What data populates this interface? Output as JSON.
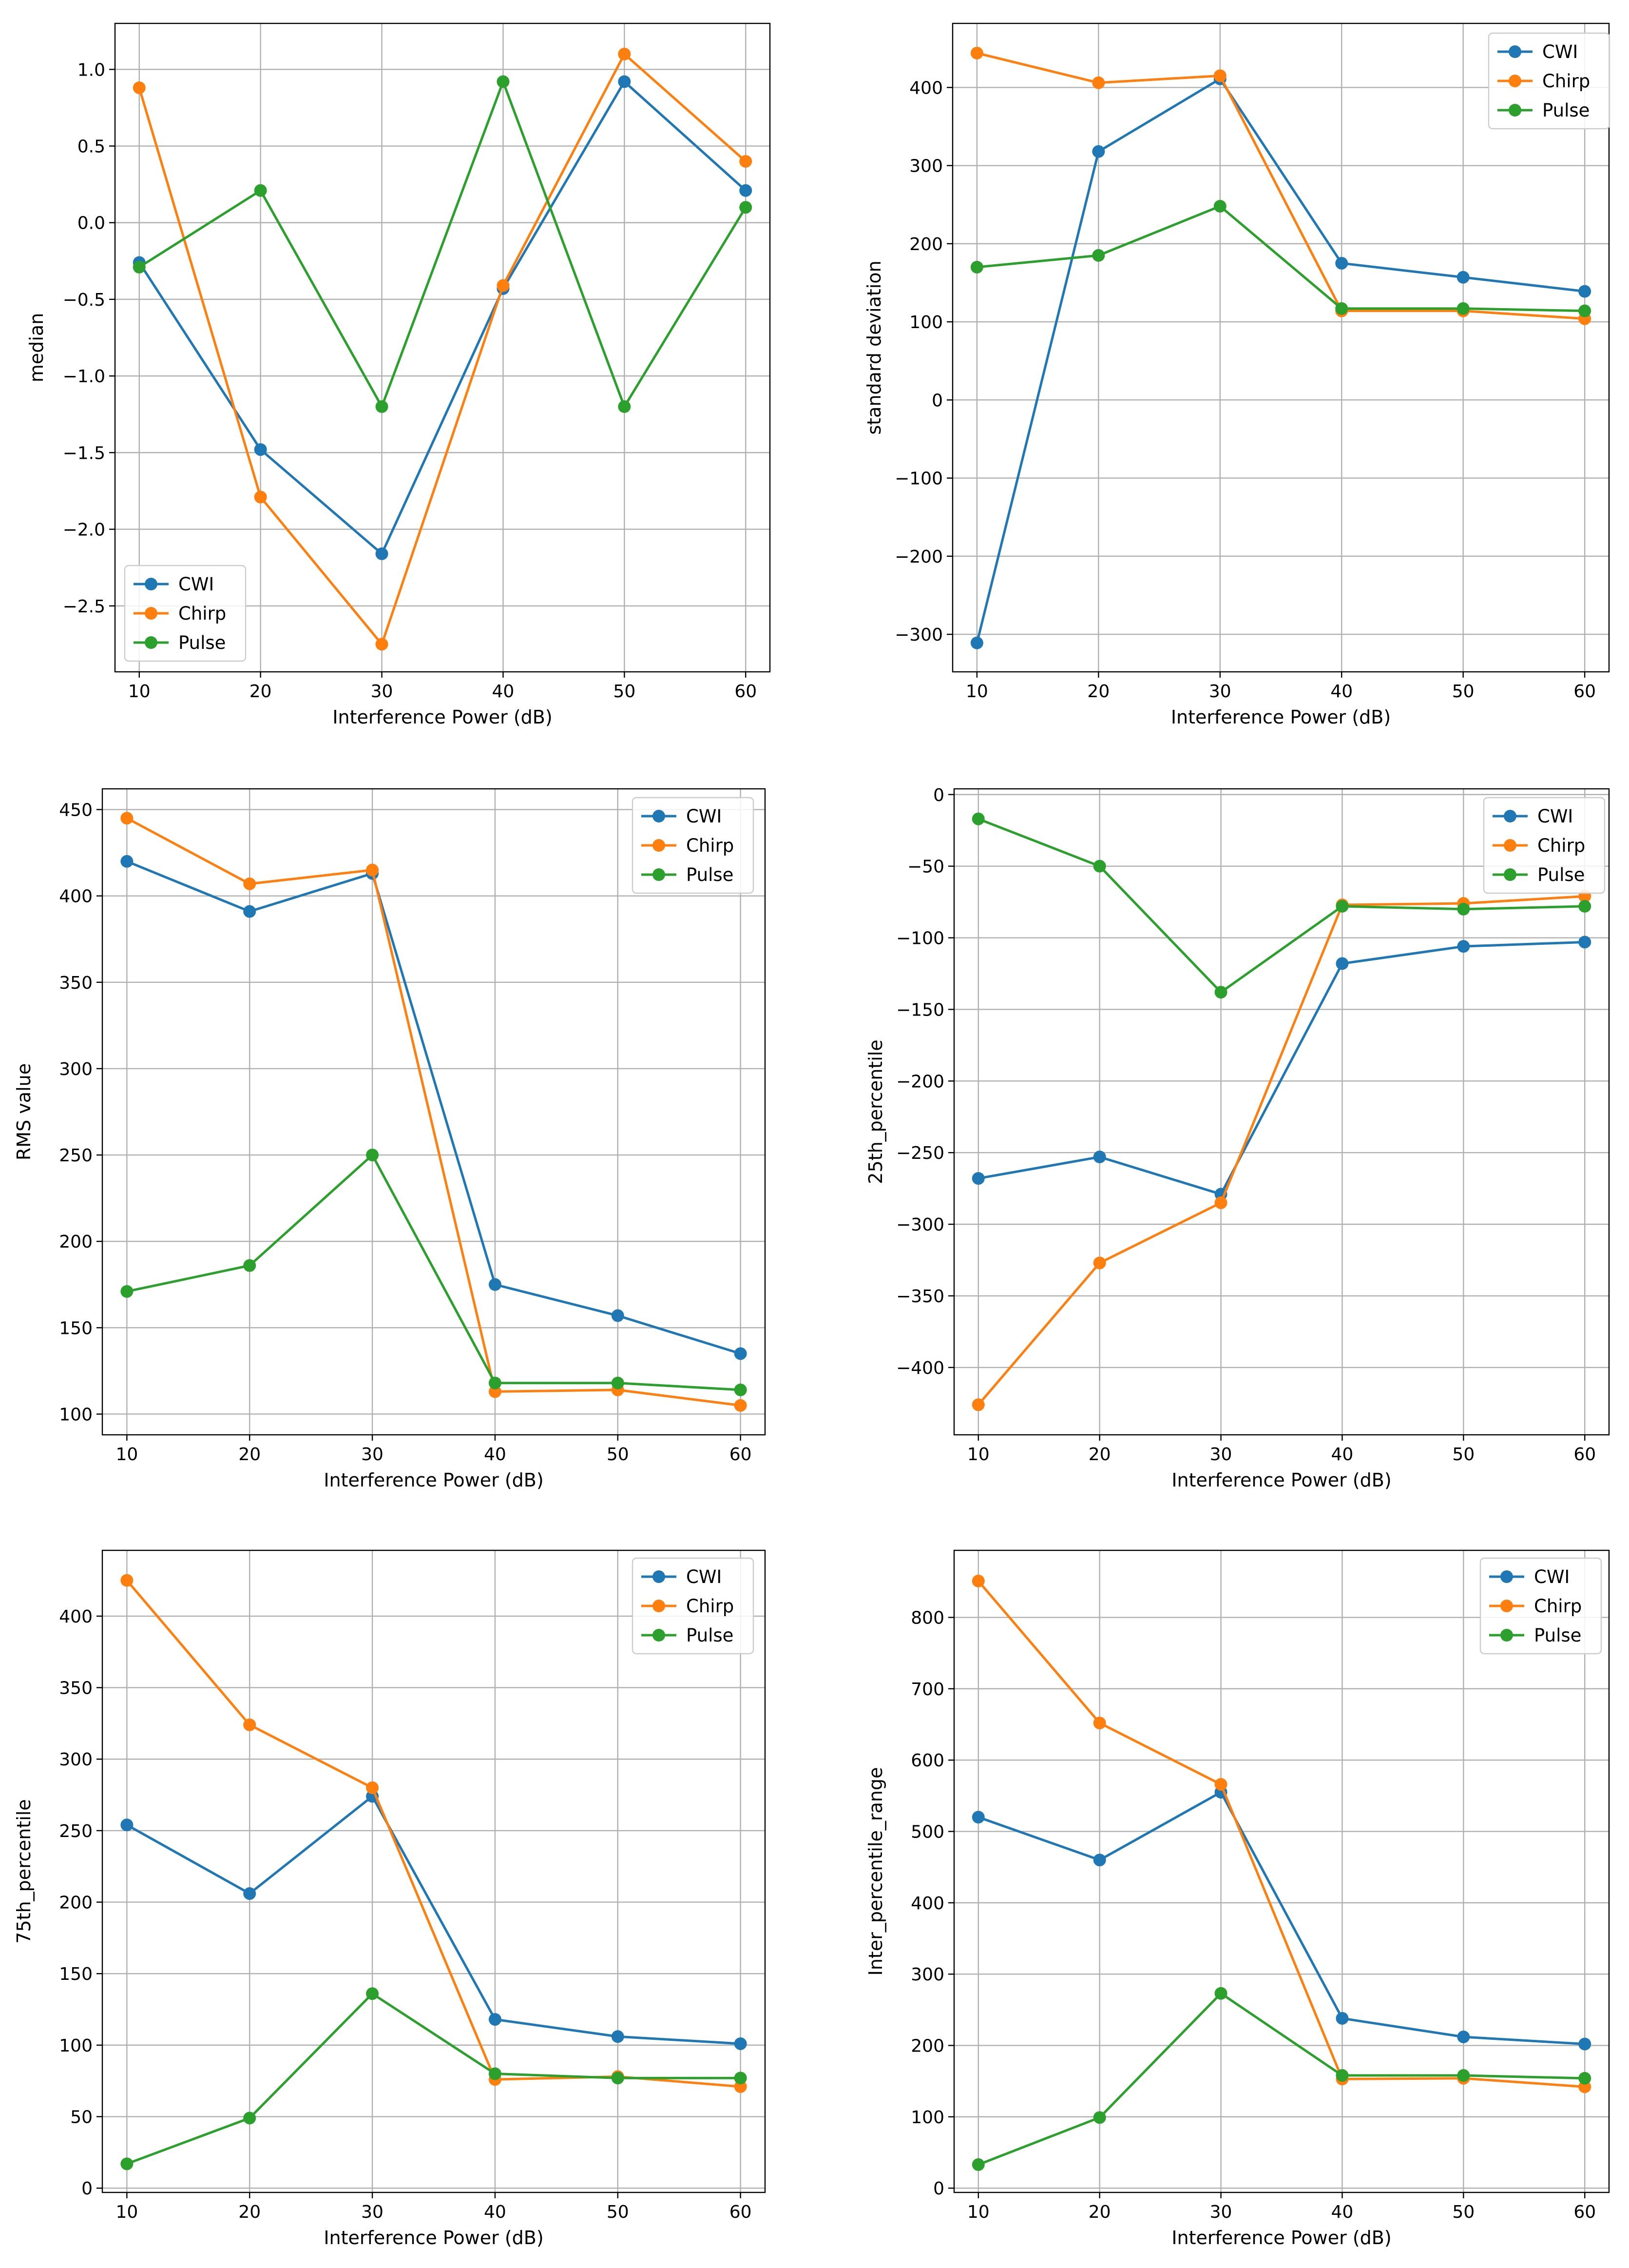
{
  "figure": {
    "series_colors": {
      "CWI": "#1f77b4",
      "Chirp": "#ff7f0e",
      "Pulse": "#2ca02c"
    }
  },
  "chart_data": [
    {
      "type": "line",
      "x": [
        10,
        20,
        30,
        40,
        50,
        60
      ],
      "xlabel": "Interference Power (dB)",
      "ylabel": "median",
      "xlim": [
        8,
        62
      ],
      "ylim": [
        -2.93,
        1.3
      ],
      "xticks": [
        "10",
        "20",
        "30",
        "40",
        "50",
        "60"
      ],
      "yticks": [
        {
          "value": 1.0,
          "label": "1.0"
        },
        {
          "value": 0.5,
          "label": "0.5"
        },
        {
          "value": 0.0,
          "label": "0.0"
        },
        {
          "value": -0.5,
          "label": "−0.5"
        },
        {
          "value": -1.0,
          "label": "−1.0"
        },
        {
          "value": -1.5,
          "label": "−1.5"
        },
        {
          "value": -2.0,
          "label": "−2.0"
        },
        {
          "value": -2.5,
          "label": "−2.5"
        }
      ],
      "legend": "lower-left",
      "grid": true,
      "series": [
        {
          "name": "CWI",
          "values": [
            -0.26,
            -1.48,
            -2.16,
            -0.43,
            0.92,
            0.21
          ]
        },
        {
          "name": "Chirp",
          "values": [
            0.88,
            -1.79,
            -2.75,
            -0.41,
            1.1,
            0.4
          ]
        },
        {
          "name": "Pulse",
          "values": [
            -0.29,
            0.21,
            -1.2,
            0.92,
            -1.2,
            0.1
          ]
        }
      ]
    },
    {
      "type": "line",
      "x": [
        10,
        20,
        30,
        40,
        50,
        60
      ],
      "xlabel": "Interference Power (dB)",
      "ylabel": "standard deviation",
      "xlim": [
        8,
        62
      ],
      "ylim": [
        -348,
        482
      ],
      "xticks": [
        "10",
        "20",
        "30",
        "40",
        "50",
        "60"
      ],
      "yticks": [
        {
          "value": 400,
          "label": "400"
        },
        {
          "value": 300,
          "label": "300"
        },
        {
          "value": 200,
          "label": "200"
        },
        {
          "value": 100,
          "label": "100"
        },
        {
          "value": 0,
          "label": "0"
        },
        {
          "value": -100,
          "label": "−100"
        },
        {
          "value": -200,
          "label": "−200"
        },
        {
          "value": -300,
          "label": "−300"
        }
      ],
      "legend": "upper-right",
      "grid": true,
      "series": [
        {
          "name": "CWI",
          "values": [
            -311,
            318,
            411,
            175,
            157,
            139
          ]
        },
        {
          "name": "Chirp",
          "values": [
            444,
            406,
            415,
            114,
            114,
            104
          ]
        },
        {
          "name": "Pulse",
          "values": [
            170,
            185,
            248,
            117,
            117,
            114
          ]
        }
      ]
    },
    {
      "type": "line",
      "x": [
        10,
        20,
        30,
        40,
        50,
        60
      ],
      "xlabel": "Interference Power (dB)",
      "ylabel": "RMS value",
      "xlim": [
        8,
        62
      ],
      "ylim": [
        88,
        462
      ],
      "xticks": [
        "10",
        "20",
        "30",
        "40",
        "50",
        "60"
      ],
      "yticks": [
        {
          "value": 450,
          "label": "450"
        },
        {
          "value": 400,
          "label": "400"
        },
        {
          "value": 350,
          "label": "350"
        },
        {
          "value": 300,
          "label": "300"
        },
        {
          "value": 250,
          "label": "250"
        },
        {
          "value": 200,
          "label": "200"
        },
        {
          "value": 150,
          "label": "150"
        },
        {
          "value": 100,
          "label": "100"
        }
      ],
      "legend": "upper-right",
      "grid": true,
      "series": [
        {
          "name": "CWI",
          "values": [
            420,
            391,
            413,
            175,
            157,
            135
          ]
        },
        {
          "name": "Chirp",
          "values": [
            445,
            407,
            415,
            113,
            114,
            105
          ]
        },
        {
          "name": "Pulse",
          "values": [
            171,
            186,
            250,
            118,
            118,
            114
          ]
        }
      ]
    },
    {
      "type": "line",
      "x": [
        10,
        20,
        30,
        40,
        50,
        60
      ],
      "xlabel": "Interference Power (dB)",
      "ylabel": "25th_percentile",
      "xlim": [
        8,
        62
      ],
      "ylim": [
        -447,
        4
      ],
      "xticks": [
        "10",
        "20",
        "30",
        "40",
        "50",
        "60"
      ],
      "yticks": [
        {
          "value": 0,
          "label": "0"
        },
        {
          "value": -50,
          "label": "−50"
        },
        {
          "value": -100,
          "label": "−100"
        },
        {
          "value": -150,
          "label": "−150"
        },
        {
          "value": -200,
          "label": "−200"
        },
        {
          "value": -250,
          "label": "−250"
        },
        {
          "value": -300,
          "label": "−300"
        },
        {
          "value": -350,
          "label": "−350"
        },
        {
          "value": -400,
          "label": "−400"
        }
      ],
      "legend": "upper-right",
      "grid": true,
      "series": [
        {
          "name": "CWI",
          "values": [
            -268,
            -253,
            -279,
            -118,
            -106,
            -103
          ]
        },
        {
          "name": "Chirp",
          "values": [
            -426,
            -327,
            -285,
            -77,
            -76,
            -71
          ]
        },
        {
          "name": "Pulse",
          "values": [
            -17,
            -50,
            -138,
            -78,
            -80,
            -78
          ]
        }
      ]
    },
    {
      "type": "line",
      "x": [
        10,
        20,
        30,
        40,
        50,
        60
      ],
      "xlabel": "Interference Power (dB)",
      "ylabel": "75th_percentile",
      "xlim": [
        8,
        62
      ],
      "ylim": [
        -3,
        446
      ],
      "xticks": [
        "10",
        "20",
        "30",
        "40",
        "50",
        "60"
      ],
      "yticks": [
        {
          "value": 400,
          "label": "400"
        },
        {
          "value": 350,
          "label": "350"
        },
        {
          "value": 300,
          "label": "300"
        },
        {
          "value": 250,
          "label": "250"
        },
        {
          "value": 200,
          "label": "200"
        },
        {
          "value": 150,
          "label": "150"
        },
        {
          "value": 100,
          "label": "100"
        },
        {
          "value": 50,
          "label": "50"
        },
        {
          "value": 0,
          "label": "0"
        }
      ],
      "legend": "upper-right",
      "grid": true,
      "series": [
        {
          "name": "CWI",
          "values": [
            254,
            206,
            274,
            118,
            106,
            101
          ]
        },
        {
          "name": "Chirp",
          "values": [
            425,
            324,
            280,
            76,
            78,
            71
          ]
        },
        {
          "name": "Pulse",
          "values": [
            17,
            49,
            136,
            80,
            77,
            77
          ]
        }
      ]
    },
    {
      "type": "line",
      "x": [
        10,
        20,
        30,
        40,
        50,
        60
      ],
      "xlabel": "Interference Power (dB)",
      "ylabel": "Inter_percentile_range",
      "xlim": [
        8,
        62
      ],
      "ylim": [
        -6,
        894
      ],
      "xticks": [
        "10",
        "20",
        "30",
        "40",
        "50",
        "60"
      ],
      "yticks": [
        {
          "value": 800,
          "label": "800"
        },
        {
          "value": 700,
          "label": "700"
        },
        {
          "value": 600,
          "label": "600"
        },
        {
          "value": 500,
          "label": "500"
        },
        {
          "value": 400,
          "label": "400"
        },
        {
          "value": 300,
          "label": "300"
        },
        {
          "value": 200,
          "label": "200"
        },
        {
          "value": 100,
          "label": "100"
        },
        {
          "value": 0,
          "label": "0"
        }
      ],
      "legend": "upper-right",
      "grid": true,
      "series": [
        {
          "name": "CWI",
          "values": [
            520,
            460,
            555,
            238,
            212,
            202
          ]
        },
        {
          "name": "Chirp",
          "values": [
            851,
            652,
            566,
            153,
            154,
            142
          ]
        },
        {
          "name": "Pulse",
          "values": [
            33,
            99,
            273,
            158,
            158,
            154
          ]
        }
      ]
    }
  ]
}
